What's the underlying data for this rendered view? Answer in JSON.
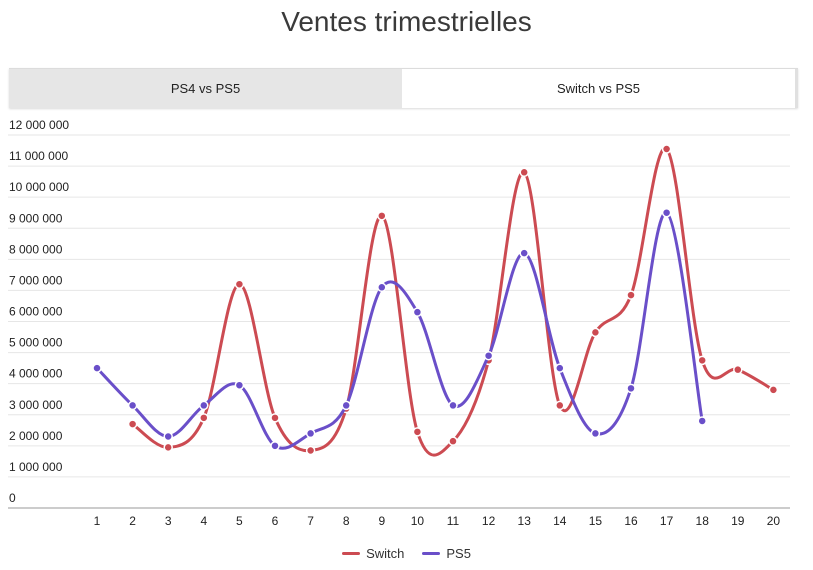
{
  "title": "Ventes trimestrielles",
  "tabs": [
    {
      "label": "PS4 vs PS5",
      "active": false
    },
    {
      "label": "Switch vs PS5",
      "active": true
    }
  ],
  "colors": {
    "switch": "#cc4b52",
    "ps5": "#6a4fc9",
    "grid": "#e6e6e6",
    "axis": "#999999"
  },
  "chart_data": {
    "type": "line",
    "title": "Ventes trimestrielles",
    "categories": [
      "1",
      "2",
      "3",
      "4",
      "5",
      "6",
      "7",
      "8",
      "9",
      "10",
      "11",
      "12",
      "13",
      "14",
      "15",
      "16",
      "17",
      "18",
      "19",
      "20"
    ],
    "ylim": [
      0,
      12000000
    ],
    "yticks": [
      "0",
      "1 000 000",
      "2 000 000",
      "3 000 000",
      "4 000 000",
      "5 000 000",
      "6 000 000",
      "7 000 000",
      "8 000 000",
      "9 000 000",
      "10 000 000",
      "11 000 000",
      "12 000 000"
    ],
    "grid": true,
    "legend_position": "bottom",
    "series": [
      {
        "name": "Switch",
        "color": "#cc4b52",
        "values": [
          null,
          2700000,
          1950000,
          2900000,
          7200000,
          2900000,
          1850000,
          3200000,
          9400000,
          2450000,
          2150000,
          4750000,
          10800000,
          3300000,
          5650000,
          6850000,
          11550000,
          4750000,
          4450000,
          3800000
        ]
      },
      {
        "name": "PS5",
        "color": "#6a4fc9",
        "values": [
          4500000,
          3300000,
          2300000,
          3300000,
          3950000,
          2000000,
          2400000,
          3300000,
          7100000,
          6300000,
          3300000,
          4900000,
          8200000,
          4500000,
          2400000,
          3850000,
          9500000,
          2800000,
          null,
          null
        ]
      }
    ]
  }
}
